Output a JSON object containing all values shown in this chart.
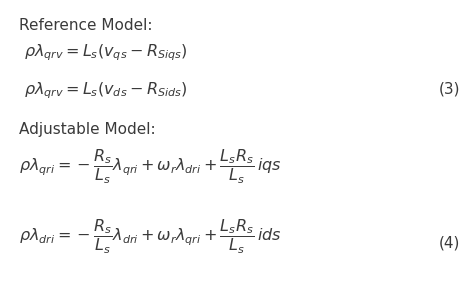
{
  "background_color": "#ffffff",
  "text_color": "#3a3a3a",
  "ref_label": "Reference Model:",
  "adj_label": "Adjustable Model:",
  "eq1": "$\\rho\\lambda_{qrv} = L_s(v_{qs} - R_{Siqs})$",
  "eq2": "$\\rho\\lambda_{qrv} = L_s(v_{ds} - R_{Sids})$",
  "eq3_label": "(3)",
  "eq3a": "$\\rho\\lambda_{qri} = -\\dfrac{R_s}{L_s}\\lambda_{qri} + \\omega_r\\lambda_{dri} + \\dfrac{L_s R_s}{L_s}\\,iqs$",
  "eq3b": "$\\rho\\lambda_{dri} = -\\dfrac{R_s}{L_s}\\lambda_{dri} + \\omega_r\\lambda_{qri} + \\dfrac{L_s R_s}{L_s}\\,ids$",
  "eq4_label": "(4)",
  "label_fontsize": 11,
  "eq_fontsize": 11.5
}
